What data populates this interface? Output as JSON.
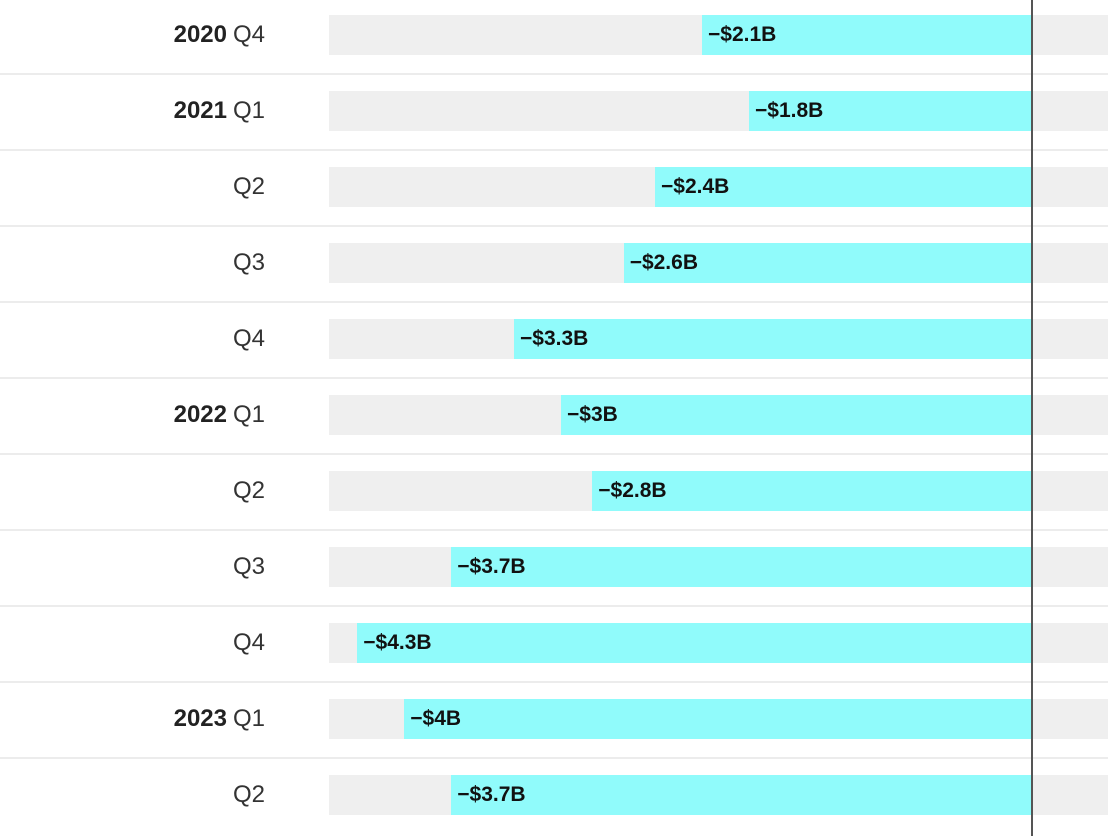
{
  "chart_data": {
    "type": "bar",
    "orientation": "horizontal",
    "categories": [
      {
        "year": "2020",
        "quarter": "Q4"
      },
      {
        "year": "2021",
        "quarter": "Q1"
      },
      {
        "year": "",
        "quarter": "Q2"
      },
      {
        "year": "",
        "quarter": "Q3"
      },
      {
        "year": "",
        "quarter": "Q4"
      },
      {
        "year": "2022",
        "quarter": "Q1"
      },
      {
        "year": "",
        "quarter": "Q2"
      },
      {
        "year": "",
        "quarter": "Q3"
      },
      {
        "year": "",
        "quarter": "Q4"
      },
      {
        "year": "2023",
        "quarter": "Q1"
      },
      {
        "year": "",
        "quarter": "Q2"
      }
    ],
    "values": [
      -2.1,
      -1.8,
      -2.4,
      -2.6,
      -3.3,
      -3.0,
      -2.8,
      -3.7,
      -4.3,
      -4.0,
      -3.7
    ],
    "value_labels": [
      "−$2.1B",
      "−$1.8B",
      "−$2.4B",
      "−$2.6B",
      "−$3.3B",
      "−$3B",
      "−$2.8B",
      "−$3.7B",
      "−$4.3B",
      "−$4B",
      "−$3.7B"
    ],
    "unit": "$B",
    "xlim": [
      -4.8,
      0.5
    ],
    "grid": false,
    "colors": {
      "bar": "#90fbfb",
      "track": "#efefef",
      "zero_line": "#555555",
      "divider": "#ececec"
    }
  }
}
